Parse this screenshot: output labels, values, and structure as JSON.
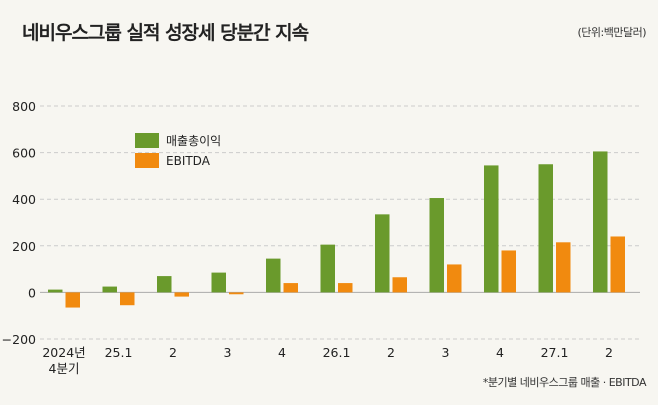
{
  "title": "네비우스그룹 실적 성장세 당분간 지속",
  "unit_note": "(단위:백만달러)",
  "footnote": "*분기별 네비우스그룹 매출 · EBITDA",
  "chart_data": {
    "type": "bar",
    "title": "네비우스그룹 실적 성장세 당분간 지속",
    "categories": [
      [
        "2024년",
        "4분기"
      ],
      [
        "25.1"
      ],
      [
        "2"
      ],
      [
        "3"
      ],
      [
        "4"
      ],
      [
        "26.1"
      ],
      [
        "2"
      ],
      [
        "3"
      ],
      [
        "4"
      ],
      [
        "27.1"
      ],
      [
        "2"
      ]
    ],
    "series": [
      {
        "name": "매출총이익",
        "color": "#6a9a2c",
        "values": [
          12,
          25,
          70,
          85,
          145,
          205,
          335,
          405,
          545,
          550,
          605
        ]
      },
      {
        "name": "EBITDA",
        "color": "#f18a0f",
        "values": [
          -65,
          -55,
          -18,
          -8,
          40,
          40,
          65,
          120,
          180,
          215,
          240
        ]
      }
    ],
    "ylim": [
      -200,
      800
    ],
    "yticks": [
      -200,
      0,
      200,
      400,
      600,
      800
    ],
    "ytick_labels": [
      "−200",
      "0",
      "200",
      "400",
      "600",
      "800"
    ],
    "grid": true,
    "legend": "top-left",
    "xlabel": "",
    "ylabel": ""
  }
}
